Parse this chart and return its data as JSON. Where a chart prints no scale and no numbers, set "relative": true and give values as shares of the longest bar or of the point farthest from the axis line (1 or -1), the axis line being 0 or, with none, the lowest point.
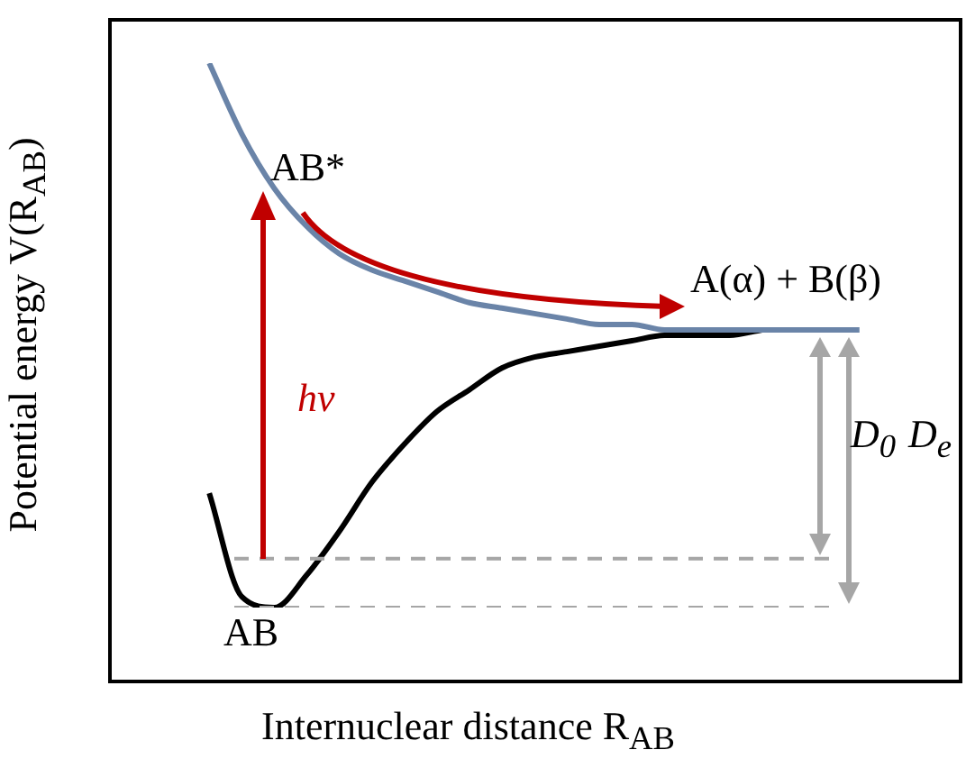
{
  "chart_data": {
    "type": "line",
    "relative": true,
    "xlabel": "Internuclear distance R$_{AB}$",
    "ylabel": "Potential energy V(R$_{AB}$)",
    "categories": [
      null,
      null,
      null,
      null,
      null,
      null,
      null,
      null,
      null,
      null,
      null,
      null,
      null,
      null,
      null,
      null,
      null,
      null,
      null,
      null,
      null,
      null,
      null,
      null,
      null,
      null,
      null
    ],
    "series": [
      {
        "color": "#6a84a8",
        "values": [
          null,
          null,
          null,
          1.0,
          0.87,
          0.77,
          0.7,
          0.65,
          0.62,
          0.6,
          0.58,
          0.56,
          0.55,
          0.54,
          0.53,
          0.52,
          0.52,
          0.51,
          0.51,
          0.51,
          0.51,
          0.51,
          0.51,
          0.51,
          null,
          null,
          null
        ]
      },
      {
        "color": "#000000",
        "values": [
          null,
          null,
          null,
          0.21,
          0.02,
          0.0,
          0.06,
          0.14,
          0.23,
          0.3,
          0.36,
          0.4,
          0.44,
          0.46,
          0.47,
          0.48,
          0.49,
          0.5,
          0.5,
          0.5,
          0.51,
          null,
          null,
          null,
          null,
          null,
          null
        ]
      }
    ],
    "ref_lines": [
      {
        "axis": "y",
        "value": 0.09,
        "color": "#a6a6a6",
        "line_style": "dashed"
      },
      {
        "axis": "y",
        "value": 0,
        "color": "#a6a6a6",
        "line_style": "dashed"
      }
    ],
    "annotations": [
      "AB*",
      "A(α) + B(β)",
      "hv",
      "D$_{0}$",
      "D$_{e}$",
      "AB"
    ]
  }
}
